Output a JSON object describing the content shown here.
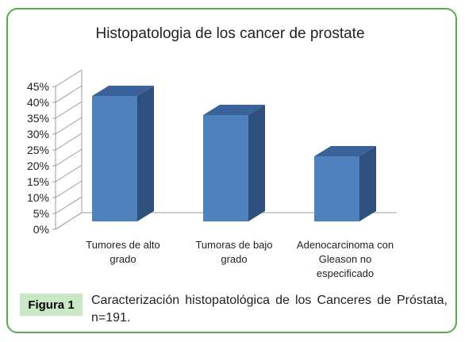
{
  "chart_data": {
    "type": "bar",
    "title": "Histopatologia de los  cancer de  prostate",
    "categories": [
      [
        "Tumores de alto",
        "grado"
      ],
      [
        "Tumoras de bajo",
        "grado"
      ],
      [
        "Adenocarcinoma con",
        "Gleason no",
        "especificado"
      ]
    ],
    "values": [
      42,
      36,
      23
    ],
    "yticks": [
      "0%",
      "5%",
      "10%",
      "15%",
      "20%",
      "25%",
      "30%",
      "35%",
      "40%",
      "45%"
    ],
    "ylim": [
      0,
      45
    ],
    "xlabel": "",
    "ylabel": "",
    "legend": "none",
    "grid": false,
    "colors": {
      "bar_front": "#4f81bd",
      "bar_side": "#2f4f7f",
      "bar_top": "#3b639b",
      "frame": "#5aab4e"
    }
  },
  "caption": {
    "label": "Figura 1",
    "text": "Caracterización histopatológica de los Canceres de Próstata, n=191."
  }
}
